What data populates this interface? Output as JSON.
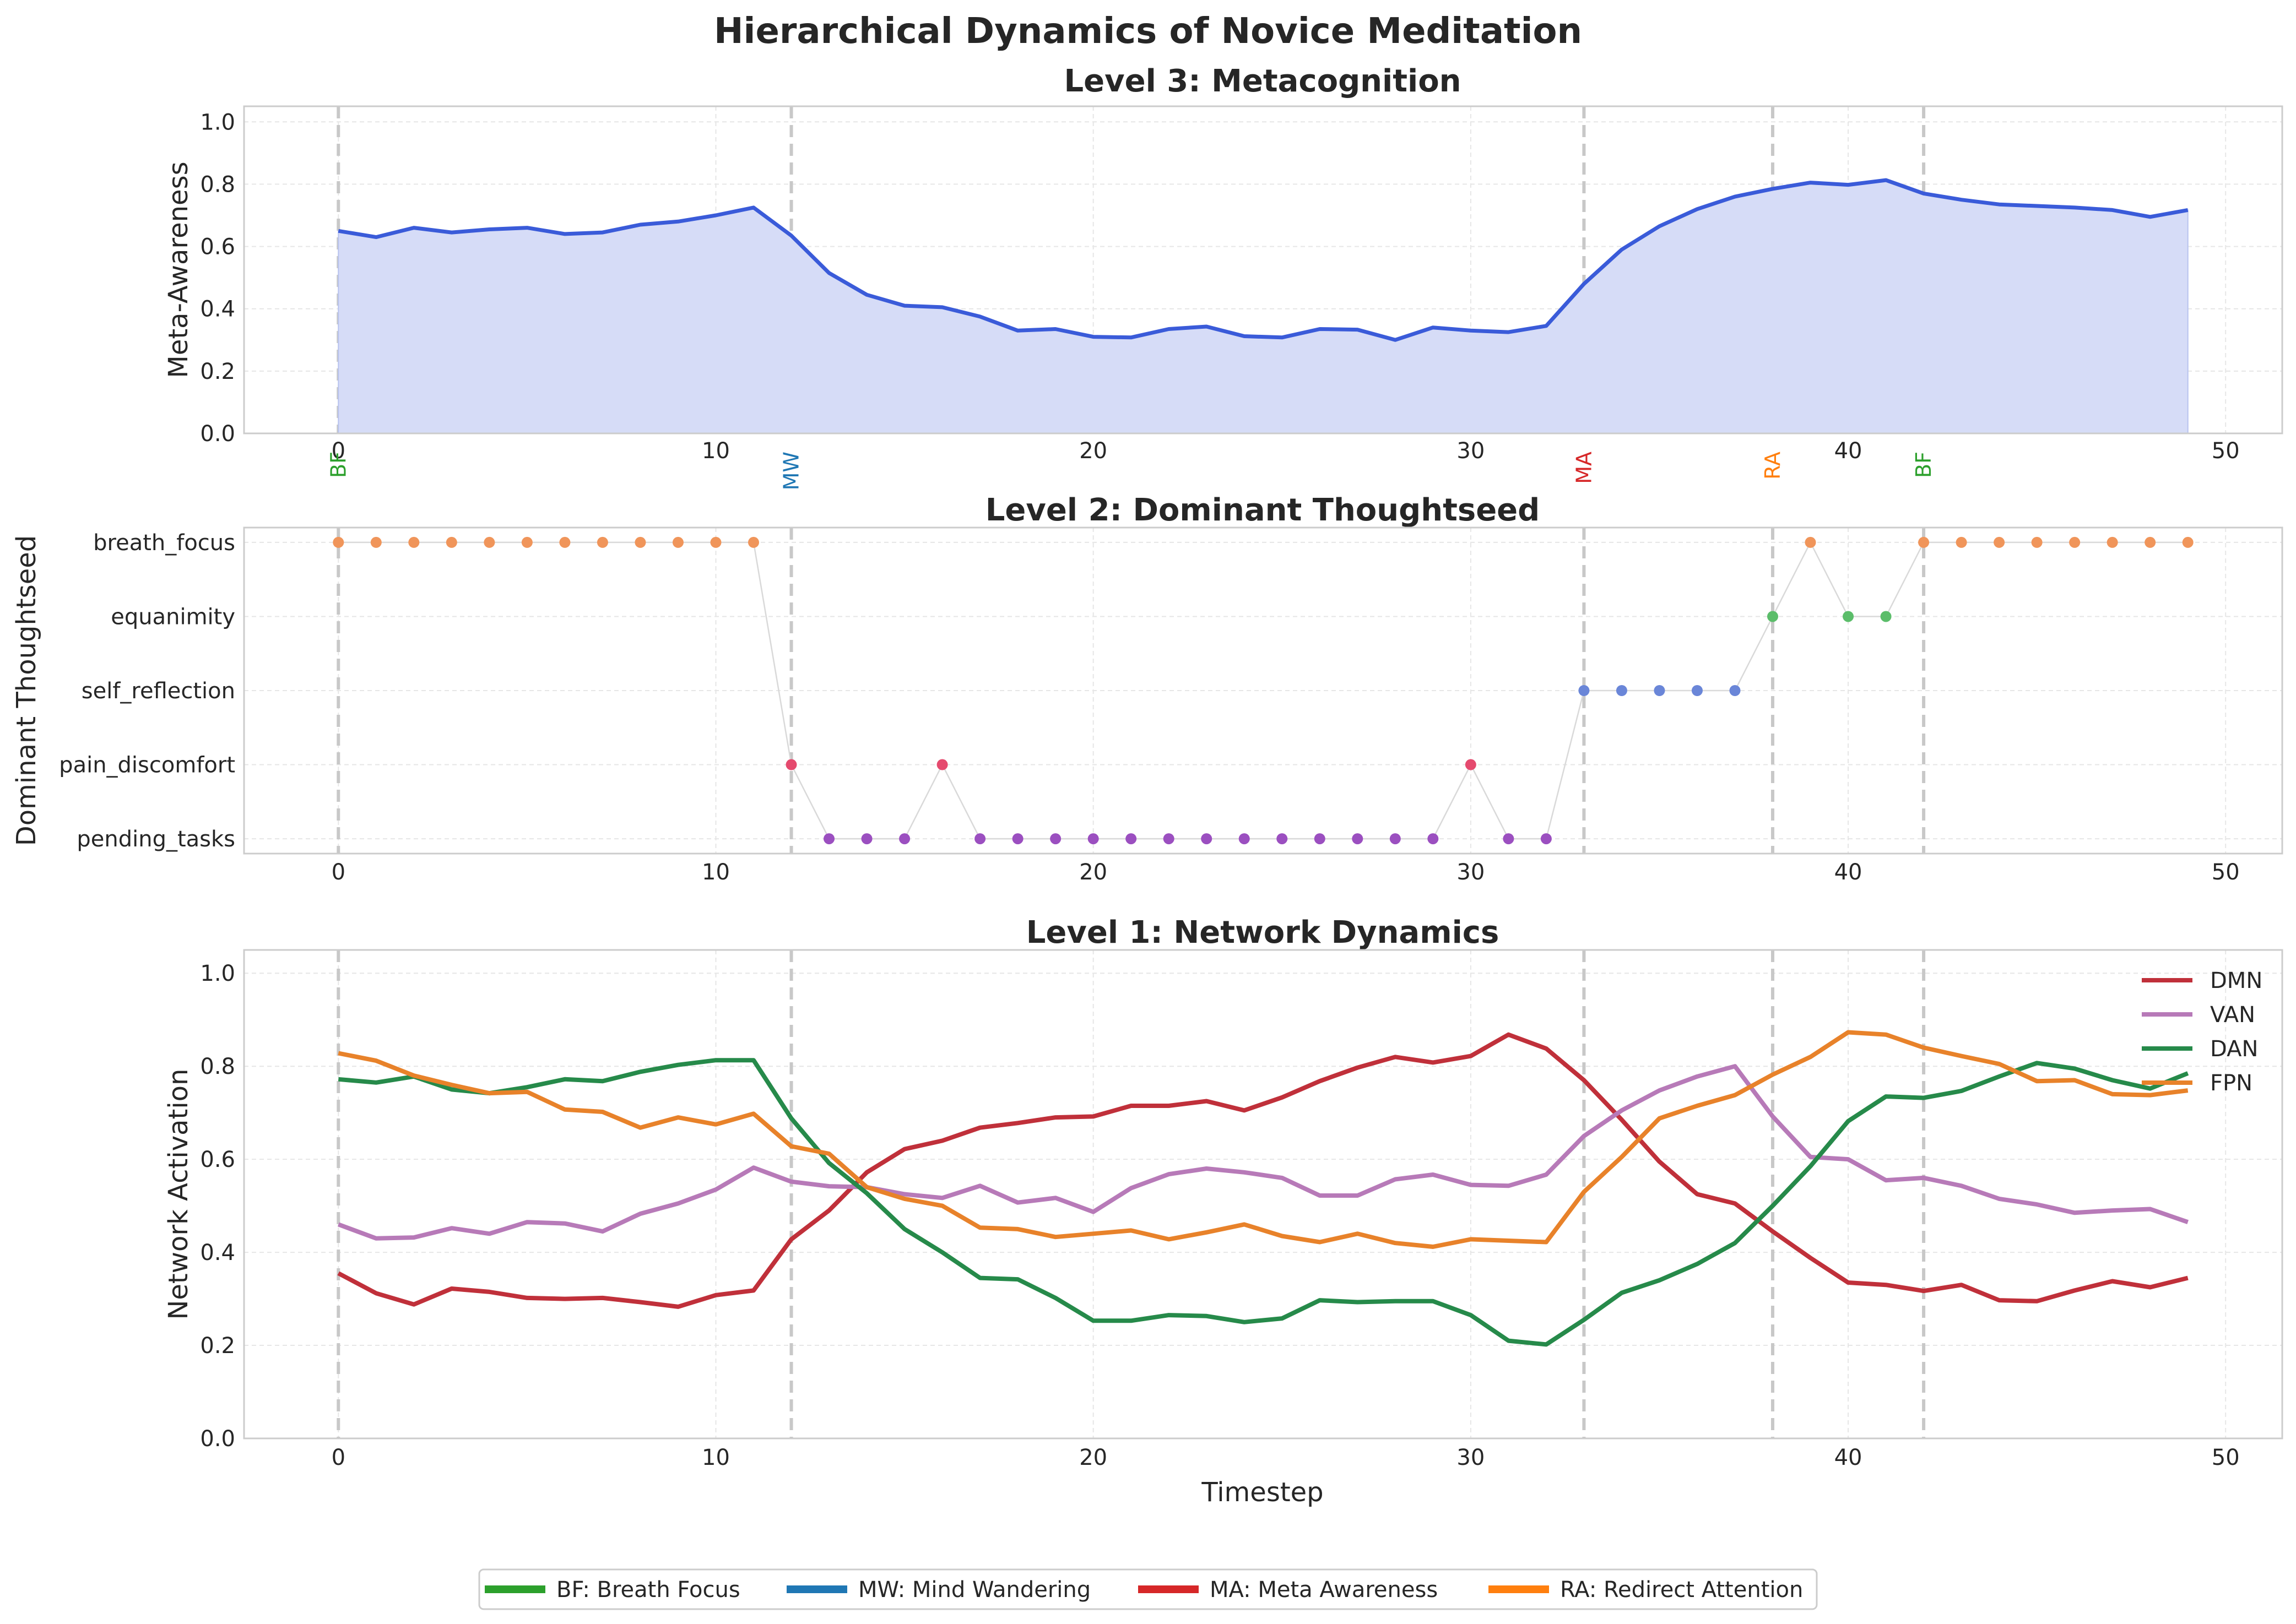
{
  "figure": {
    "suptitle": "Hierarchical Dynamics of Novice Meditation"
  },
  "colors": {
    "BF": "#2ca02c",
    "MW": "#1f77b4",
    "MA": "#d62728",
    "RA": "#ff7f0e",
    "meta_line": "#3a5bd9",
    "meta_fill": "#d6dcf7",
    "DMN": "#c0303a",
    "VAN": "#b77ab8",
    "DAN": "#268a4a",
    "FPN": "#e8822a",
    "ts_breath_focus": "#f0955a",
    "ts_equanimity": "#5bbd6a",
    "ts_self_reflection": "#6a86d8",
    "ts_pain_discomfort": "#e54a6e",
    "ts_pending_tasks": "#9b4fc0"
  },
  "phase_legend": {
    "items": [
      {
        "key": "BF",
        "label": "BF: Breath Focus",
        "color": "#2ca02c"
      },
      {
        "key": "MW",
        "label": "MW: Mind Wandering",
        "color": "#1f77b4"
      },
      {
        "key": "MA",
        "label": "MA: Meta Awareness",
        "color": "#d62728"
      },
      {
        "key": "RA",
        "label": "RA: Redirect Attention",
        "color": "#ff7f0e"
      }
    ]
  },
  "chart_data": [
    {
      "type": "area",
      "title": "Level 3: Metacognition",
      "xlabel": "",
      "ylabel": "Meta-Awareness",
      "xlim": [
        -2.5,
        51.5
      ],
      "ylim": [
        0,
        1.05
      ],
      "xticks": [
        0,
        10,
        20,
        30,
        40,
        50
      ],
      "yticks": [
        0.0,
        0.2,
        0.4,
        0.6,
        0.8,
        1.0
      ],
      "grid": true,
      "phase_transitions": [
        {
          "x": 0,
          "label": "BF",
          "color": "#2ca02c"
        },
        {
          "x": 12,
          "label": "MW",
          "color": "#1f77b4"
        },
        {
          "x": 33,
          "label": "MA",
          "color": "#d62728"
        },
        {
          "x": 38,
          "label": "RA",
          "color": "#ff7f0e"
        },
        {
          "x": 42,
          "label": "BF",
          "color": "#2ca02c"
        }
      ],
      "x": [
        0,
        1,
        2,
        3,
        4,
        5,
        6,
        7,
        8,
        9,
        10,
        11,
        12,
        13,
        14,
        15,
        16,
        17,
        18,
        19,
        20,
        21,
        22,
        23,
        24,
        25,
        26,
        27,
        28,
        29,
        30,
        31,
        32,
        33,
        34,
        35,
        36,
        37,
        38,
        39,
        40,
        41,
        42,
        43,
        44,
        45,
        46,
        47,
        48,
        49
      ],
      "values": [
        0.65,
        0.63,
        0.66,
        0.645,
        0.655,
        0.66,
        0.64,
        0.645,
        0.67,
        0.68,
        0.7,
        0.725,
        0.635,
        0.515,
        0.445,
        0.41,
        0.405,
        0.375,
        0.33,
        0.335,
        0.31,
        0.308,
        0.335,
        0.343,
        0.312,
        0.308,
        0.335,
        0.333,
        0.3,
        0.34,
        0.33,
        0.325,
        0.345,
        0.48,
        0.59,
        0.665,
        0.72,
        0.76,
        0.785,
        0.805,
        0.798,
        0.813,
        0.77,
        0.75,
        0.735,
        0.73,
        0.725,
        0.717,
        0.695,
        0.717
      ]
    },
    {
      "type": "scatter",
      "title": "Level 2: Dominant Thoughtseed",
      "xlabel": "",
      "ylabel": "Dominant Thoughtseed",
      "xlim": [
        -2.5,
        51.5
      ],
      "xticks": [
        0,
        10,
        20,
        30,
        40,
        50
      ],
      "grid": true,
      "categories": [
        "pending_tasks",
        "pain_discomfort",
        "self_reflection",
        "equanimity",
        "breath_focus"
      ],
      "x": [
        0,
        1,
        2,
        3,
        4,
        5,
        6,
        7,
        8,
        9,
        10,
        11,
        12,
        13,
        14,
        15,
        16,
        17,
        18,
        19,
        20,
        21,
        22,
        23,
        24,
        25,
        26,
        27,
        28,
        29,
        30,
        31,
        32,
        33,
        34,
        35,
        36,
        37,
        38,
        39,
        40,
        41,
        42,
        43,
        44,
        45,
        46,
        47,
        48,
        49
      ],
      "values": [
        "breath_focus",
        "breath_focus",
        "breath_focus",
        "breath_focus",
        "breath_focus",
        "breath_focus",
        "breath_focus",
        "breath_focus",
        "breath_focus",
        "breath_focus",
        "breath_focus",
        "breath_focus",
        "pain_discomfort",
        "pending_tasks",
        "pending_tasks",
        "pending_tasks",
        "pain_discomfort",
        "pending_tasks",
        "pending_tasks",
        "pending_tasks",
        "pending_tasks",
        "pending_tasks",
        "pending_tasks",
        "pending_tasks",
        "pending_tasks",
        "pending_tasks",
        "pending_tasks",
        "pending_tasks",
        "pending_tasks",
        "pending_tasks",
        "pain_discomfort",
        "pending_tasks",
        "pending_tasks",
        "self_reflection",
        "self_reflection",
        "self_reflection",
        "self_reflection",
        "self_reflection",
        "equanimity",
        "breath_focus",
        "equanimity",
        "equanimity",
        "breath_focus",
        "breath_focus",
        "breath_focus",
        "breath_focus",
        "breath_focus",
        "breath_focus",
        "breath_focus",
        "breath_focus"
      ]
    },
    {
      "type": "line",
      "title": "Level 1: Network Dynamics",
      "xlabel": "Timestep",
      "ylabel": "Network Activation",
      "xlim": [
        -2.5,
        51.5
      ],
      "ylim": [
        0,
        1.05
      ],
      "xticks": [
        0,
        10,
        20,
        30,
        40,
        50
      ],
      "yticks": [
        0.0,
        0.2,
        0.4,
        0.6,
        0.8,
        1.0
      ],
      "grid": true,
      "legend": "top-right",
      "x": [
        0,
        1,
        2,
        3,
        4,
        5,
        6,
        7,
        8,
        9,
        10,
        11,
        12,
        13,
        14,
        15,
        16,
        17,
        18,
        19,
        20,
        21,
        22,
        23,
        24,
        25,
        26,
        27,
        28,
        29,
        30,
        31,
        32,
        33,
        34,
        35,
        36,
        37,
        38,
        39,
        40,
        41,
        42,
        43,
        44,
        45,
        46,
        47,
        48,
        49
      ],
      "series": [
        {
          "name": "DMN",
          "color": "#c0303a",
          "values": [
            0.355,
            0.312,
            0.288,
            0.322,
            0.315,
            0.302,
            0.3,
            0.302,
            0.293,
            0.283,
            0.308,
            0.318,
            0.428,
            0.49,
            0.572,
            0.622,
            0.64,
            0.668,
            0.678,
            0.69,
            0.692,
            0.715,
            0.715,
            0.725,
            0.705,
            0.733,
            0.768,
            0.797,
            0.82,
            0.808,
            0.822,
            0.868,
            0.838,
            0.77,
            0.685,
            0.595,
            0.525,
            0.505,
            0.445,
            0.388,
            0.335,
            0.33,
            0.317,
            0.33,
            0.297,
            0.295,
            0.318,
            0.338,
            0.325,
            0.345
          ]
        },
        {
          "name": "VAN",
          "color": "#b77ab8",
          "values": [
            0.46,
            0.43,
            0.432,
            0.452,
            0.44,
            0.465,
            0.462,
            0.445,
            0.483,
            0.505,
            0.535,
            0.582,
            0.552,
            0.542,
            0.54,
            0.525,
            0.517,
            0.543,
            0.507,
            0.517,
            0.487,
            0.538,
            0.568,
            0.58,
            0.572,
            0.56,
            0.522,
            0.522,
            0.557,
            0.567,
            0.545,
            0.543,
            0.567,
            0.65,
            0.705,
            0.748,
            0.778,
            0.8,
            0.692,
            0.605,
            0.6,
            0.555,
            0.56,
            0.543,
            0.515,
            0.503,
            0.485,
            0.49,
            0.493,
            0.465
          ]
        },
        {
          "name": "DAN",
          "color": "#268a4a",
          "values": [
            0.772,
            0.765,
            0.778,
            0.75,
            0.742,
            0.755,
            0.772,
            0.768,
            0.788,
            0.803,
            0.813,
            0.813,
            0.688,
            0.592,
            0.527,
            0.45,
            0.4,
            0.345,
            0.342,
            0.302,
            0.253,
            0.253,
            0.265,
            0.263,
            0.25,
            0.258,
            0.297,
            0.293,
            0.295,
            0.295,
            0.265,
            0.21,
            0.202,
            0.255,
            0.313,
            0.34,
            0.375,
            0.42,
            0.5,
            0.585,
            0.682,
            0.735,
            0.732,
            0.747,
            0.778,
            0.807,
            0.795,
            0.77,
            0.752,
            0.785
          ]
        },
        {
          "name": "FPN",
          "color": "#e8822a",
          "values": [
            0.828,
            0.812,
            0.78,
            0.76,
            0.742,
            0.745,
            0.707,
            0.702,
            0.668,
            0.69,
            0.675,
            0.698,
            0.628,
            0.612,
            0.54,
            0.515,
            0.5,
            0.453,
            0.45,
            0.433,
            0.44,
            0.447,
            0.428,
            0.443,
            0.46,
            0.435,
            0.422,
            0.44,
            0.42,
            0.412,
            0.428,
            0.425,
            0.422,
            0.53,
            0.605,
            0.688,
            0.715,
            0.738,
            0.782,
            0.82,
            0.873,
            0.868,
            0.84,
            0.822,
            0.805,
            0.768,
            0.77,
            0.74,
            0.738,
            0.748
          ]
        }
      ]
    }
  ]
}
